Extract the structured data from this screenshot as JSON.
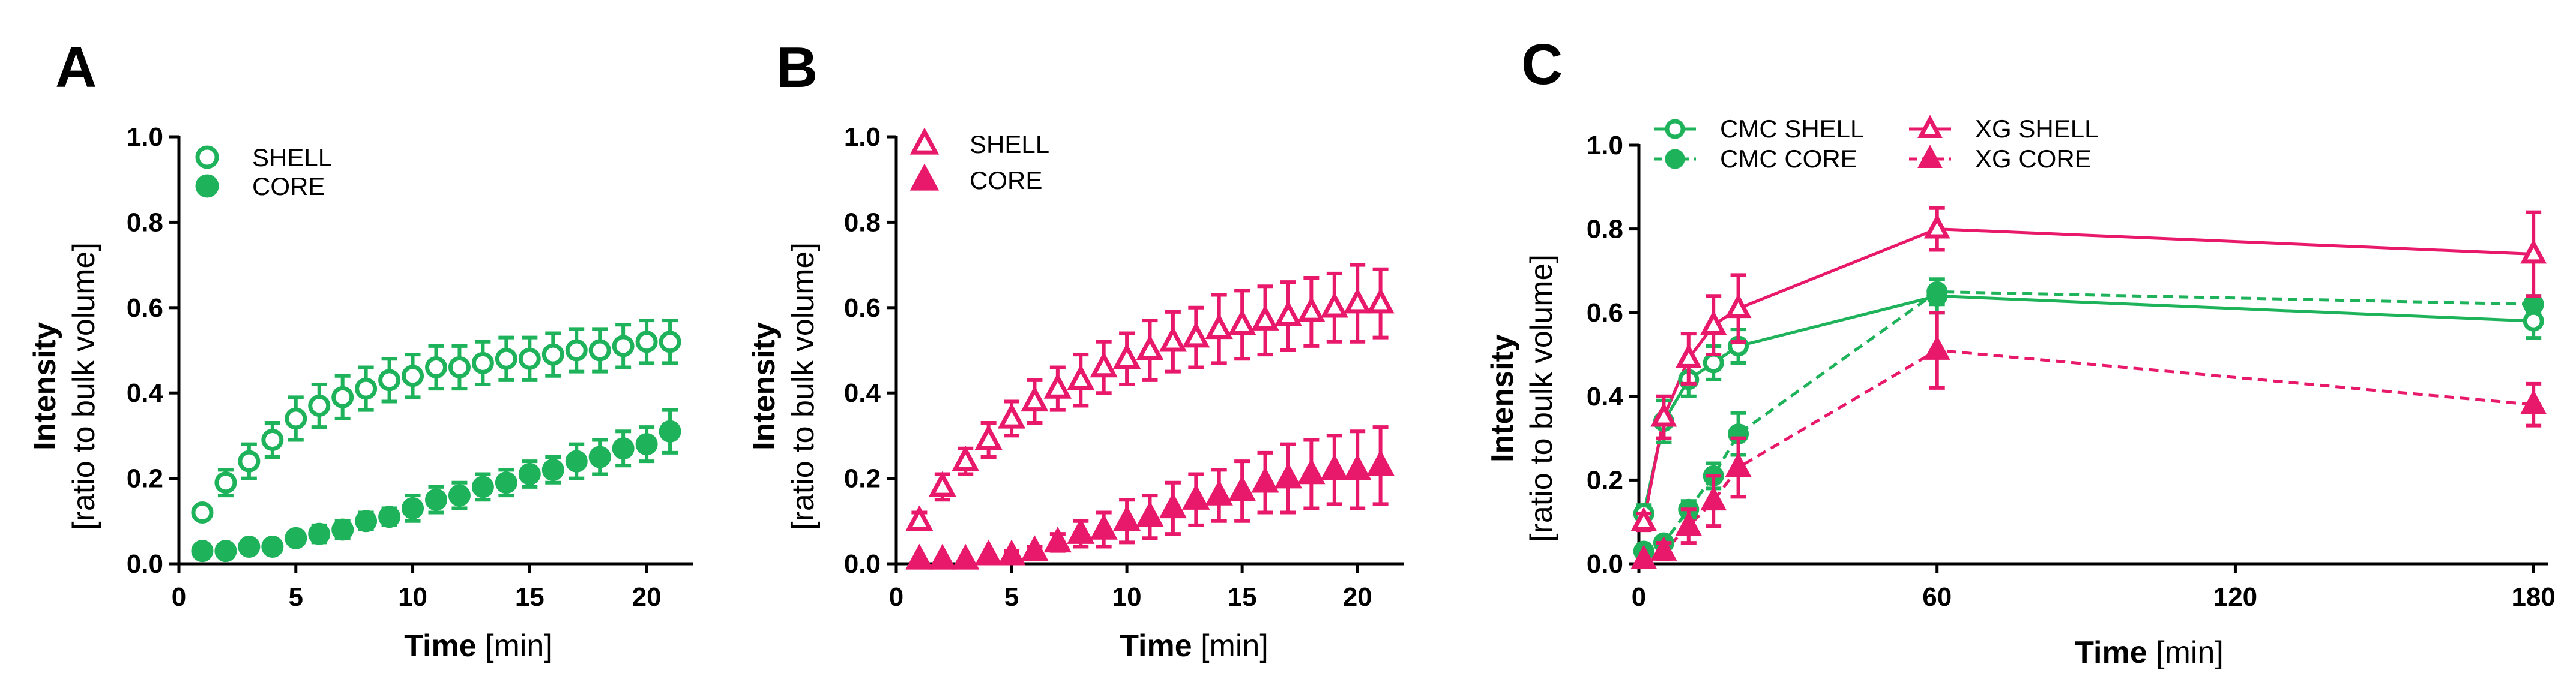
{
  "chart_data": [
    {
      "panel": "A",
      "type": "scatter",
      "xlabel_bold": "Time",
      "xlabel_unit": " [min]",
      "ylabel_bold": "Intensity",
      "ylabel_sub": "[ratio to bulk volume]",
      "xlim": [
        0,
        22
      ],
      "ylim": [
        0,
        1.0
      ],
      "xticks": [
        "0",
        "5",
        "10",
        "15",
        "20"
      ],
      "yticks": [
        "0.0",
        "0.2",
        "0.4",
        "0.6",
        "0.8",
        "1.0"
      ],
      "legend": [
        "SHELL",
        "CORE"
      ],
      "series": [
        {
          "name": "SHELL",
          "color": "#1eb35a",
          "marker": "circle-open",
          "x": [
            1,
            2,
            3,
            4,
            5,
            6,
            7,
            8,
            9,
            10,
            11,
            12,
            13,
            14,
            15,
            16,
            17,
            18,
            19,
            20,
            21
          ],
          "y": [
            0.12,
            0.19,
            0.24,
            0.29,
            0.34,
            0.37,
            0.39,
            0.41,
            0.43,
            0.44,
            0.46,
            0.46,
            0.47,
            0.48,
            0.48,
            0.49,
            0.5,
            0.5,
            0.51,
            0.52,
            0.52
          ],
          "err": [
            0.01,
            0.03,
            0.04,
            0.04,
            0.05,
            0.05,
            0.05,
            0.05,
            0.05,
            0.05,
            0.05,
            0.05,
            0.05,
            0.05,
            0.05,
            0.05,
            0.05,
            0.05,
            0.05,
            0.05,
            0.05
          ]
        },
        {
          "name": "CORE",
          "color": "#1eb35a",
          "marker": "circle-filled",
          "x": [
            1,
            2,
            3,
            4,
            5,
            6,
            7,
            8,
            9,
            10,
            11,
            12,
            13,
            14,
            15,
            16,
            17,
            18,
            19,
            20,
            21
          ],
          "y": [
            0.03,
            0.03,
            0.04,
            0.04,
            0.06,
            0.07,
            0.08,
            0.1,
            0.11,
            0.13,
            0.15,
            0.16,
            0.18,
            0.19,
            0.21,
            0.22,
            0.24,
            0.25,
            0.27,
            0.28,
            0.31
          ],
          "err": [
            0.0,
            0.0,
            0.0,
            0.01,
            0.01,
            0.02,
            0.02,
            0.02,
            0.02,
            0.03,
            0.03,
            0.03,
            0.03,
            0.03,
            0.03,
            0.03,
            0.04,
            0.04,
            0.04,
            0.04,
            0.05
          ]
        }
      ]
    },
    {
      "panel": "B",
      "type": "scatter",
      "xlabel_bold": "Time",
      "xlabel_unit": " [min]",
      "ylabel_bold": "Intensity",
      "ylabel_sub": "[ratio to bulk volume]",
      "xlim": [
        0,
        22
      ],
      "ylim": [
        0,
        1.0
      ],
      "xticks": [
        "0",
        "5",
        "10",
        "15",
        "20"
      ],
      "yticks": [
        "0.0",
        "0.2",
        "0.4",
        "0.6",
        "0.8",
        "1.0"
      ],
      "legend": [
        "SHELL",
        "CORE"
      ],
      "series": [
        {
          "name": "SHELL",
          "color": "#e8196b",
          "marker": "triangle-open",
          "x": [
            1,
            2,
            3,
            4,
            5,
            6,
            7,
            8,
            9,
            10,
            11,
            12,
            13,
            14,
            15,
            16,
            17,
            18,
            19,
            20,
            21
          ],
          "y": [
            0.1,
            0.18,
            0.24,
            0.29,
            0.34,
            0.38,
            0.41,
            0.43,
            0.46,
            0.48,
            0.5,
            0.52,
            0.53,
            0.55,
            0.56,
            0.57,
            0.58,
            0.59,
            0.6,
            0.61,
            0.61
          ],
          "err": [
            0.02,
            0.03,
            0.03,
            0.04,
            0.04,
            0.05,
            0.05,
            0.06,
            0.06,
            0.06,
            0.07,
            0.07,
            0.07,
            0.08,
            0.08,
            0.08,
            0.08,
            0.08,
            0.08,
            0.09,
            0.08
          ]
        },
        {
          "name": "CORE",
          "color": "#e8196b",
          "marker": "triangle-filled",
          "x": [
            1,
            2,
            3,
            4,
            5,
            6,
            7,
            8,
            9,
            10,
            11,
            12,
            13,
            14,
            15,
            16,
            17,
            18,
            19,
            20,
            21
          ],
          "y": [
            0.01,
            0.01,
            0.01,
            0.02,
            0.02,
            0.03,
            0.05,
            0.07,
            0.08,
            0.1,
            0.11,
            0.13,
            0.15,
            0.16,
            0.17,
            0.19,
            0.2,
            0.21,
            0.22,
            0.22,
            0.23
          ],
          "err": [
            0.0,
            0.0,
            0.0,
            0.0,
            0.01,
            0.01,
            0.02,
            0.03,
            0.04,
            0.05,
            0.05,
            0.06,
            0.06,
            0.06,
            0.07,
            0.07,
            0.08,
            0.08,
            0.08,
            0.09,
            0.09
          ]
        }
      ]
    },
    {
      "panel": "C",
      "type": "line",
      "xlabel_bold": "Time",
      "xlabel_unit": " [min]",
      "ylabel_bold": "Intensity",
      "ylabel_sub": "[ratio to bulk volume]",
      "xlim": [
        0,
        183
      ],
      "ylim": [
        0,
        1.0
      ],
      "xticks": [
        "0",
        "60",
        "120",
        "180"
      ],
      "yticks": [
        "0.0",
        "0.2",
        "0.4",
        "0.6",
        "0.8",
        "1.0"
      ],
      "legend": [
        "CMC SHELL",
        "CMC CORE",
        "XG SHELL",
        "XG CORE"
      ],
      "series": [
        {
          "name": "CMC SHELL",
          "color": "#1eb35a",
          "marker": "circle-open",
          "dash": false,
          "x": [
            1,
            5,
            10,
            15,
            20,
            60,
            180
          ],
          "y": [
            0.12,
            0.34,
            0.44,
            0.48,
            0.52,
            0.64,
            0.58
          ],
          "err": [
            0.02,
            0.05,
            0.04,
            0.04,
            0.04,
            0.04,
            0.04
          ]
        },
        {
          "name": "CMC CORE",
          "color": "#1eb35a",
          "marker": "circle-filled",
          "dash": true,
          "x": [
            1,
            5,
            10,
            15,
            20,
            60,
            180
          ],
          "y": [
            0.03,
            0.05,
            0.13,
            0.21,
            0.31,
            0.65,
            0.62
          ],
          "err": [
            0.01,
            0.01,
            0.02,
            0.03,
            0.05,
            0.03,
            0.02
          ]
        },
        {
          "name": "XG SHELL",
          "color": "#e8196b",
          "marker": "triangle-open",
          "dash": false,
          "x": [
            1,
            5,
            10,
            15,
            20,
            60,
            180
          ],
          "y": [
            0.1,
            0.35,
            0.49,
            0.57,
            0.61,
            0.8,
            0.74
          ],
          "err": [
            0.02,
            0.05,
            0.06,
            0.07,
            0.08,
            0.05,
            0.1
          ]
        },
        {
          "name": "XG CORE",
          "color": "#e8196b",
          "marker": "triangle-filled",
          "dash": true,
          "x": [
            1,
            5,
            10,
            15,
            20,
            60,
            180
          ],
          "y": [
            0.01,
            0.03,
            0.09,
            0.15,
            0.23,
            0.51,
            0.38
          ],
          "err": [
            0.0,
            0.02,
            0.04,
            0.06,
            0.07,
            0.09,
            0.05
          ]
        }
      ]
    }
  ]
}
